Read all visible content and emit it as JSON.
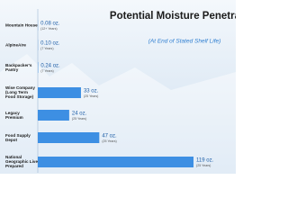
{
  "chart_data": {
    "type": "bar",
    "orientation": "horizontal",
    "title": "Potential Moisture Penetration",
    "subtitle": "(At End of Stated Shelf Life)",
    "categories": [
      "Mountain House",
      "AlpineAire",
      "Backpacker's Pantry",
      "Wise Company (Long Term Food Storage)",
      "Legacy Premium",
      "Food Supply Depot",
      "National Geographic Live Prepared"
    ],
    "values": [
      0.08,
      0.1,
      0.24,
      33,
      24,
      47,
      119
    ],
    "value_labels": [
      "0.08 oz.",
      "0.10 oz.",
      "0.24 oz.",
      "33 oz.",
      "24 oz.",
      "47 oz.",
      "119 oz."
    ],
    "shelf_life": [
      "(12+ Years)",
      "(7 Years)",
      "(7 Years)",
      "(25 Years)",
      "(25 Years)",
      "(25 Years)",
      "(25 Years)"
    ],
    "color": "#3d8fe3",
    "xlim": [
      0,
      119
    ]
  }
}
